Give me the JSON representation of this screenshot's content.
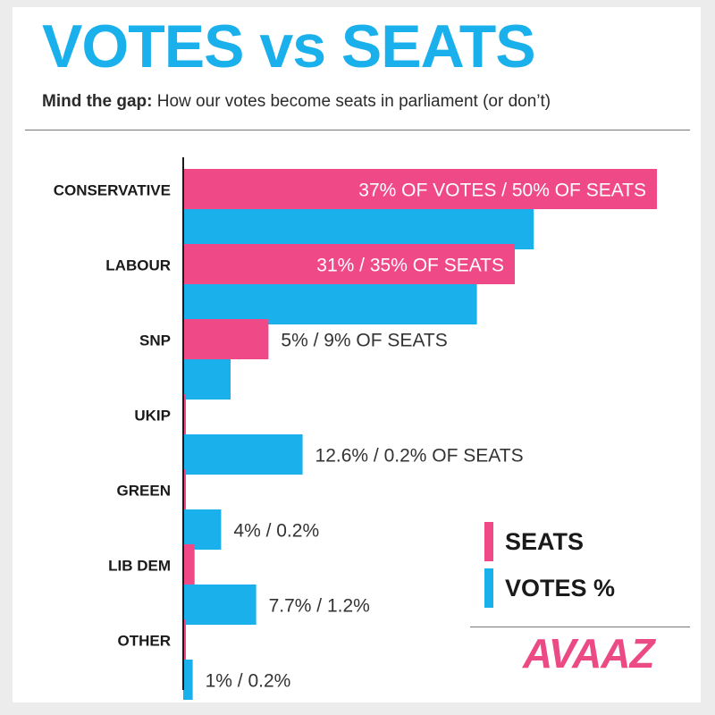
{
  "title": "VOTES vs SEATS",
  "subtitle_bold": "Mind the gap:",
  "subtitle_rest": "How our votes become seats in parliament (or don’t)",
  "brand": "AVAAZ",
  "colors": {
    "seats": "#ef4a87",
    "votes": "#1ab0ec",
    "title": "#1ab0ec",
    "brand": "#ec4a85"
  },
  "chart_data": {
    "type": "bar",
    "orientation": "horizontal",
    "categories": [
      "CONSERVATIVE",
      "LABOUR",
      "SNP",
      "UKIP",
      "GREEN",
      "LIB DEM",
      "OTHER"
    ],
    "series": [
      {
        "name": "SEATS",
        "values": [
          50,
          35,
          9,
          0.2,
          0.2,
          1.2,
          0.2
        ]
      },
      {
        "name": "VOTES %",
        "values": [
          37,
          31,
          5,
          12.6,
          4,
          7.7,
          1
        ]
      }
    ],
    "labels": [
      "37% OF VOTES / 50% OF SEATS",
      "31% / 35% OF SEATS",
      "5% / 9% OF SEATS",
      "12.6% / 0.2% OF SEATS",
      "4% / 0.2%",
      "7.7% / 1.2%",
      "1% / 0.2%"
    ],
    "xlim": [
      0,
      50
    ],
    "grid": false,
    "legend_position": "bottom-right"
  }
}
